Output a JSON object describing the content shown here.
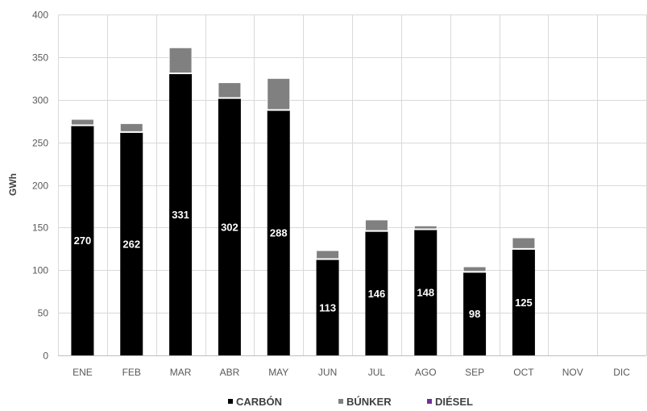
{
  "chart_data": {
    "type": "bar",
    "stacked": true,
    "categories": [
      "ENE",
      "FEB",
      "MAR",
      "ABR",
      "MAY",
      "JUN",
      "JUL",
      "AGO",
      "SEP",
      "OCT",
      "NOV",
      "DIC"
    ],
    "series": [
      {
        "name": "CARBÓN",
        "color": "#000000",
        "values": [
          270,
          262,
          331,
          302,
          288,
          113,
          146,
          148,
          98,
          125,
          null,
          null
        ],
        "data_labels": true
      },
      {
        "name": "BÚNKER",
        "color": "#808080",
        "values": [
          7,
          10,
          30,
          18,
          37,
          10,
          13,
          4,
          6,
          13,
          null,
          null
        ]
      },
      {
        "name": "DIÉSEL",
        "color": "#7030a0",
        "values": [
          0,
          0,
          0,
          0,
          0,
          0,
          0,
          0,
          0,
          0,
          null,
          null
        ]
      }
    ],
    "ylabel": "GWh",
    "xlabel": "",
    "ylim": [
      0,
      400
    ],
    "yticks": [
      0,
      50,
      100,
      150,
      200,
      250,
      300,
      350,
      400
    ],
    "grid": true,
    "legend_position": "bottom"
  }
}
